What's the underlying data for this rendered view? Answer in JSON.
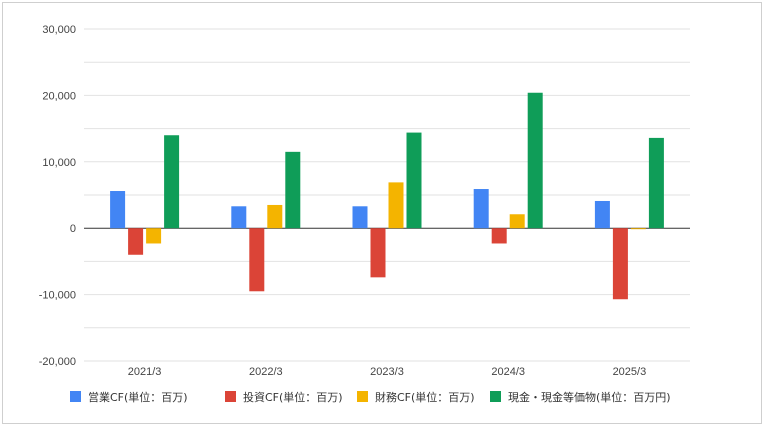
{
  "chart_data": {
    "type": "bar",
    "title": "",
    "xlabel": "",
    "ylabel": "",
    "categories": [
      "2021/3",
      "2022/3",
      "2023/3",
      "2024/3",
      "2025/3"
    ],
    "series": [
      {
        "name": "営業CF(単位：百万)",
        "color": "#4285f4",
        "values": [
          5600,
          3300,
          3300,
          5900,
          4100
        ]
      },
      {
        "name": "投資CF(単位：百万)",
        "color": "#db4437",
        "values": [
          -4000,
          -9500,
          -7400,
          -2300,
          -10700
        ]
      },
      {
        "name": "財務CF(単位：百万)",
        "color": "#f4b400",
        "values": [
          -2300,
          3500,
          6900,
          2100,
          -100
        ]
      },
      {
        "name": "現金・現金等価物(単位：百万円)",
        "color": "#0f9d58",
        "values": [
          14000,
          11500,
          14400,
          20400,
          13600
        ]
      }
    ],
    "ylim": [
      -20000,
      30000
    ],
    "yticks": [
      "30,000",
      "20,000",
      "10,000",
      "0",
      "-10,000",
      "-20,000"
    ],
    "ytick_values": [
      30000,
      20000,
      10000,
      0,
      -10000,
      -20000
    ],
    "grid": true,
    "legend": "bottom"
  }
}
